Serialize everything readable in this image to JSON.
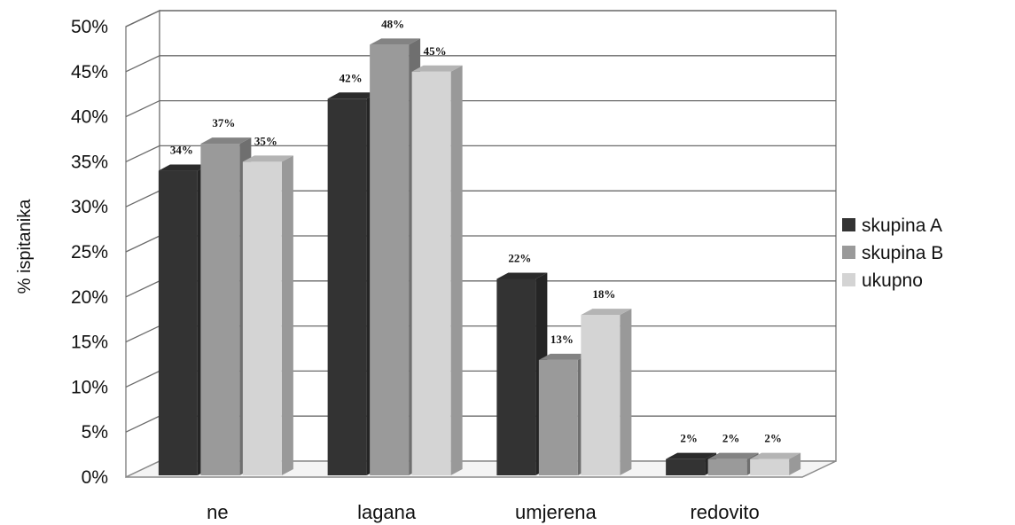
{
  "chart_data": {
    "type": "bar",
    "categories": [
      "ne",
      "lagana",
      "umjerena",
      "redovito"
    ],
    "series": [
      {
        "name": "skupina A",
        "values": [
          34,
          42,
          22,
          2
        ],
        "labels": [
          "34%",
          "42%",
          "22%",
          "2%"
        ],
        "color": "#333333"
      },
      {
        "name": "skupina B",
        "values": [
          37,
          48,
          13,
          2
        ],
        "labels": [
          "37%",
          "48%",
          "13%",
          "2%"
        ],
        "color": "#9a9a9a"
      },
      {
        "name": "ukupno",
        "values": [
          35,
          45,
          18,
          2
        ],
        "labels": [
          "35%",
          "45%",
          "18%",
          "2%"
        ],
        "color": "#d4d4d4"
      }
    ],
    "ylabel": "% ispitanika",
    "ylim": [
      0,
      50
    ],
    "yticks": [
      "0%",
      "5%",
      "10%",
      "15%",
      "20%",
      "25%",
      "30%",
      "35%",
      "40%",
      "45%",
      "50%"
    ],
    "grid": true,
    "legend_position": "right"
  }
}
